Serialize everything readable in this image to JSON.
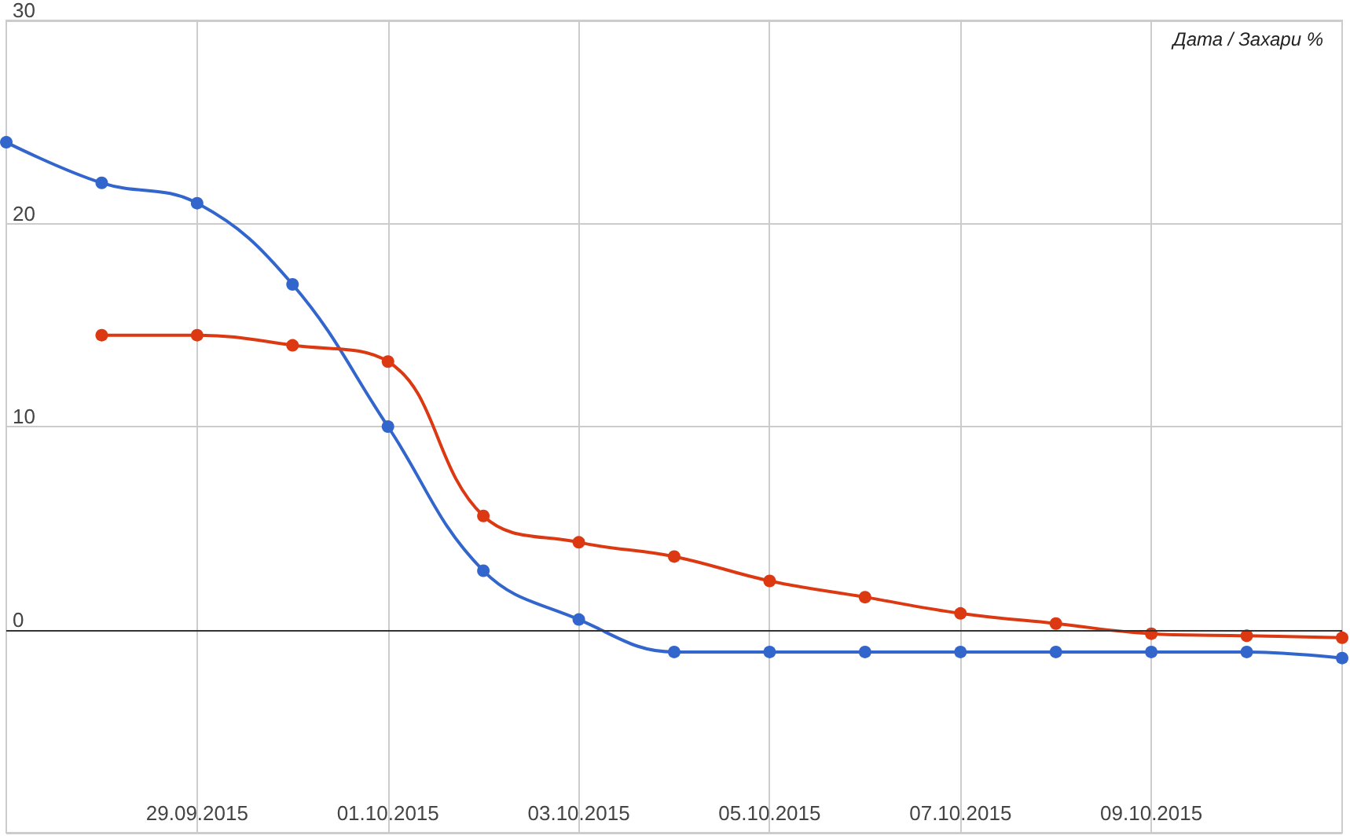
{
  "chart_data": {
    "type": "line",
    "title": "Дата / Захари %",
    "x": [
      "2015-09-27",
      "2015-09-28",
      "2015-09-29",
      "2015-09-30",
      "2015-10-01",
      "2015-10-02",
      "2015-10-03",
      "2015-10-04",
      "2015-10-05",
      "2015-10-06",
      "2015-10-07",
      "2015-10-08",
      "2015-10-09",
      "2015-10-10",
      "2015-10-11"
    ],
    "series": [
      {
        "color": "#3366cc",
        "values": [
          24.0,
          22.0,
          21.0,
          17.0,
          10.0,
          2.9,
          0.5,
          -1.1,
          -1.1,
          -1.1,
          -1.1,
          -1.1,
          -1.1,
          -1.1,
          -1.4
        ]
      },
      {
        "color": "#dc3912",
        "values": [
          null,
          14.5,
          14.5,
          14.0,
          13.2,
          5.6,
          4.3,
          3.6,
          2.4,
          1.6,
          0.8,
          0.3,
          -0.2,
          -0.3,
          -0.4
        ]
      }
    ],
    "xlim": [
      "2015-09-27",
      "2015-10-11"
    ],
    "xticks": [
      {
        "value": "2015-09-29",
        "label": "29.09.2015"
      },
      {
        "value": "2015-10-01",
        "label": "01.10.2015"
      },
      {
        "value": "2015-10-03",
        "label": "03.10.2015"
      },
      {
        "value": "2015-10-05",
        "label": "05.10.2015"
      },
      {
        "value": "2015-10-07",
        "label": "07.10.2015"
      },
      {
        "value": "2015-10-09",
        "label": "09.10.2015"
      }
    ],
    "ylim": [
      -10,
      30
    ],
    "yticks": [
      {
        "value": -10,
        "label": null
      },
      0,
      10,
      20,
      30
    ],
    "ref_lines": [
      {
        "axis": "y",
        "value": 0,
        "label": null,
        "color": "#333333"
      }
    ],
    "grid": true,
    "marker": "circle",
    "line_style": "solid"
  }
}
